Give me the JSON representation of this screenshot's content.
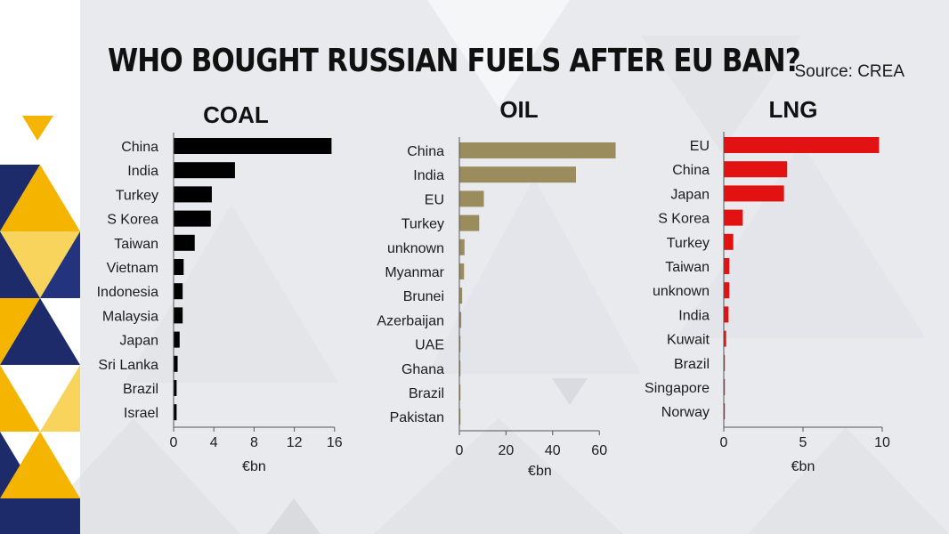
{
  "title": "WHO BOUGHT RUSSIAN FUELS AFTER EU BAN?",
  "source": "Source: CREA",
  "colors": {
    "coal": "#000000",
    "oil": "#9a8c5c",
    "lng": "#e31212",
    "axis": "#555555"
  },
  "chart_data": [
    {
      "type": "bar",
      "orientation": "horizontal",
      "title": "COAL",
      "categories": [
        "China",
        "India",
        "Turkey",
        "S Korea",
        "Taiwan",
        "Vietnam",
        "Indonesia",
        "Malaysia",
        "Japan",
        "Sri Lanka",
        "Brazil",
        "Israel"
      ],
      "values": [
        15.7,
        6.1,
        3.8,
        3.7,
        2.1,
        1.0,
        0.9,
        0.9,
        0.6,
        0.4,
        0.3,
        0.3
      ],
      "xlabel": "€bn",
      "xlim": [
        0,
        16
      ],
      "xticks": [
        0,
        4,
        8,
        12,
        16
      ],
      "color": "#000000"
    },
    {
      "type": "bar",
      "orientation": "horizontal",
      "title": "OIL",
      "categories": [
        "China",
        "India",
        "EU",
        "Turkey",
        "unknown",
        "Myanmar",
        "Brunei",
        "Azerbaijan",
        "UAE",
        "Ghana",
        "Brazil",
        "Pakistan"
      ],
      "values": [
        67,
        50,
        10.5,
        8.5,
        2.2,
        2.0,
        1.2,
        0.8,
        0.4,
        0.3,
        0.2,
        0.1
      ],
      "xlabel": "€bn",
      "xlim": [
        0,
        60
      ],
      "xticks": [
        0,
        20,
        40,
        60
      ],
      "color": "#9a8c5c"
    },
    {
      "type": "bar",
      "orientation": "horizontal",
      "title": "LNG",
      "categories": [
        "EU",
        "China",
        "Japan",
        "S Korea",
        "Turkey",
        "Taiwan",
        "unknown",
        "India",
        "Kuwait",
        "Brazil",
        "Singapore",
        "Norway"
      ],
      "values": [
        9.8,
        4.0,
        3.8,
        1.2,
        0.6,
        0.35,
        0.35,
        0.3,
        0.15,
        0.05,
        0.05,
        0.05
      ],
      "xlabel": "€bn",
      "xlim": [
        0,
        10
      ],
      "xticks": [
        0,
        5,
        10
      ],
      "color": "#e31212"
    }
  ]
}
